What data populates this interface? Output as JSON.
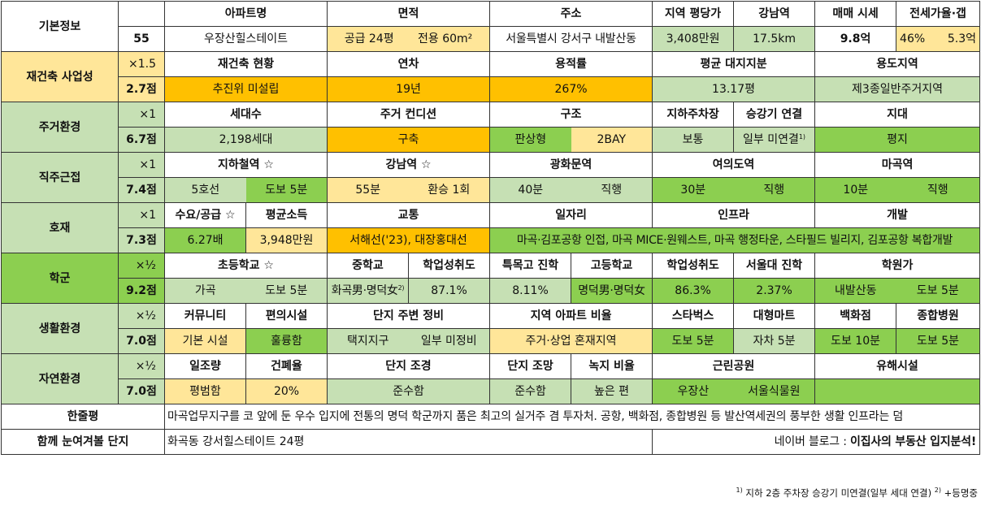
{
  "basic": {
    "label": "기본정보",
    "id": "55",
    "headers": [
      "아파트명",
      "면적",
      "주소",
      "지역 평당가",
      "강남역",
      "매매 시세",
      "전세가율·갭"
    ],
    "apt_name": "우장산힐스테이트",
    "area_supply": "공급 24평",
    "area_exclusive": "전용 60m²",
    "address": "서울특별시 강서구 내발산동",
    "price_per_pyeong": "3,408만원",
    "gangnam_distance": "17.5km",
    "sale_price": "9.8억",
    "jeonse_ratio": "46%",
    "gap": "5.3억"
  },
  "rebuild": {
    "label": "재건축 사업성",
    "mult": "×1.5",
    "score": "2.7점",
    "headers": [
      "재건축 현황",
      "연차",
      "용적률",
      "평균 대지지분",
      "용도지역"
    ],
    "values": [
      "추진위 미설립",
      "19년",
      "267%",
      "13.17평",
      "제3종일반주거지역"
    ]
  },
  "living": {
    "label": "주거환경",
    "mult": "×1",
    "score": "6.7점",
    "headers": [
      "세대수",
      "주거 컨디션",
      "구조",
      "지하주차장",
      "승강기 연결",
      "지대"
    ],
    "values": [
      "2,198세대",
      "구축",
      "판상형",
      "2BAY",
      "보통",
      "일부 미연결",
      "평지"
    ],
    "elevator_note": "1)"
  },
  "commute": {
    "label": "직주근접",
    "mult": "×1",
    "score": "7.4점",
    "headers": [
      "지하철역 ☆",
      "강남역 ☆",
      "광화문역",
      "여의도역",
      "마곡역"
    ],
    "values": [
      "5호선",
      "도보 5분",
      "55분",
      "환승 1회",
      "40분",
      "직행",
      "30분",
      "직행",
      "10분",
      "직행"
    ]
  },
  "development": {
    "label": "호재",
    "mult": "×1",
    "score": "7.3점",
    "headers": [
      "수요/공급 ☆",
      "평균소득",
      "교통",
      "일자리",
      "인프라",
      "개발"
    ],
    "values": [
      "6.27배",
      "3,948만원",
      "서해선('23), 대장홍대선",
      "마곡·김포공항 인접, 마곡 MICE·원웨스트, 마곡 행정타운, 스타필드 빌리지, 김포공항 복합개발"
    ]
  },
  "school": {
    "label": "학군",
    "mult": "×½",
    "score": "9.2점",
    "headers": [
      "초등학교 ☆",
      "중학교",
      "학업성취도",
      "특목고 진학",
      "고등학교",
      "학업성취도",
      "서울대 진학",
      "학원가"
    ],
    "values": [
      "가곡",
      "도보 5분",
      "화곡男·명덕女",
      "87.1%",
      "8.11%",
      "명덕男·명덕女",
      "86.3%",
      "2.37%",
      "내발산동",
      "도보 5분"
    ],
    "middle_note": "2)"
  },
  "life": {
    "label": "생활환경",
    "mult": "×½",
    "score": "7.0점",
    "headers": [
      "커뮤니티",
      "편의시설",
      "단지 주변 정비",
      "지역 아파트 비율",
      "스타벅스",
      "대형마트",
      "백화점",
      "종합병원"
    ],
    "values": [
      "기본 시설",
      "훌륭함",
      "택지지구",
      "일부 미정비",
      "주거·상업 혼재지역",
      "도보 5분",
      "자차 5분",
      "도보 10분",
      "도보 5분"
    ]
  },
  "nature": {
    "label": "자연환경",
    "mult": "×½",
    "score": "7.0점",
    "headers": [
      "일조량",
      "건폐율",
      "단지 조경",
      "단지 조망",
      "녹지 비율",
      "근린공원",
      "유해시설"
    ],
    "values": [
      "평범함",
      "20%",
      "준수함",
      "준수함",
      "높은 편",
      "우장산",
      "서울식물원",
      ""
    ]
  },
  "summary": {
    "label": "한줄평",
    "text": "마곡업무지구를 코 앞에 둔 우수 입지에 전통의 명덕 학군까지 품은 최고의 실거주 겸 투자처. 공항, 백화점, 종합병원 등 발산역세권의 풍부한 생활 인프라는 덤"
  },
  "compare": {
    "label": "함께 눈여겨볼 단지",
    "text": "화곡동 강서힐스테이트 24평",
    "blog_prefix": "네이버 블로그 : ",
    "blog_name": "이집사의 부동산 입지분석!"
  },
  "footnote": {
    "n1": "1)",
    "t1": " 지하 2층 주차장 승강기 미연결(일부 세대 연결) ",
    "n2": "2)",
    "t2": " +등명중"
  },
  "colors": {
    "light_green": "#c6e0b4",
    "green": "#8ccf50",
    "light_yellow": "#ffe699",
    "orange": "#ffc000"
  }
}
